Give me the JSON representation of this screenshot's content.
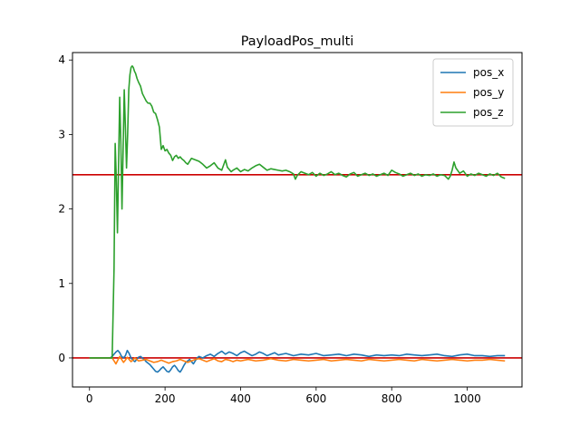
{
  "chart_data": {
    "type": "line",
    "title": "PayloadPos_multi",
    "xlabel": "",
    "ylabel": "",
    "xlim": [
      -45,
      1145
    ],
    "ylim": [
      -0.39,
      4.1
    ],
    "xticks": [
      0,
      200,
      400,
      600,
      800,
      1000
    ],
    "yticks": [
      0,
      1,
      2,
      3,
      4
    ],
    "grid": false,
    "legend_position": "top-right",
    "hlines": [
      {
        "y": 2.46,
        "color": "#cc0000"
      },
      {
        "y": 0.0,
        "color": "#cc0000"
      }
    ],
    "series": [
      {
        "name": "pos_x",
        "color": "#1f77b4",
        "x": [
          0,
          55,
          60,
          65,
          70,
          75,
          80,
          85,
          90,
          95,
          100,
          105,
          110,
          115,
          120,
          125,
          130,
          135,
          140,
          145,
          150,
          155,
          160,
          165,
          170,
          175,
          180,
          185,
          190,
          195,
          200,
          205,
          210,
          215,
          220,
          225,
          230,
          235,
          240,
          245,
          250,
          255,
          260,
          265,
          270,
          275,
          280,
          285,
          290,
          300,
          310,
          320,
          330,
          340,
          350,
          360,
          370,
          380,
          390,
          400,
          410,
          420,
          430,
          440,
          450,
          460,
          470,
          480,
          490,
          500,
          520,
          540,
          560,
          580,
          600,
          620,
          640,
          660,
          680,
          700,
          720,
          740,
          760,
          780,
          800,
          820,
          840,
          860,
          880,
          900,
          920,
          940,
          960,
          980,
          1000,
          1020,
          1040,
          1060,
          1080,
          1100
        ],
        "y": [
          0.0,
          0.0,
          0.02,
          0.05,
          0.08,
          0.1,
          0.07,
          0.02,
          0.0,
          0.03,
          0.1,
          0.06,
          0.0,
          -0.03,
          -0.05,
          -0.02,
          0.01,
          0.02,
          0.0,
          -0.02,
          -0.05,
          -0.07,
          -0.09,
          -0.12,
          -0.15,
          -0.18,
          -0.19,
          -0.17,
          -0.14,
          -0.12,
          -0.15,
          -0.18,
          -0.19,
          -0.16,
          -0.12,
          -0.1,
          -0.13,
          -0.17,
          -0.19,
          -0.15,
          -0.1,
          -0.06,
          -0.04,
          -0.02,
          -0.05,
          -0.08,
          -0.04,
          0.0,
          0.02,
          0.0,
          0.03,
          0.05,
          0.02,
          0.06,
          0.09,
          0.05,
          0.08,
          0.06,
          0.03,
          0.07,
          0.09,
          0.06,
          0.03,
          0.05,
          0.08,
          0.06,
          0.03,
          0.05,
          0.07,
          0.04,
          0.06,
          0.03,
          0.05,
          0.04,
          0.06,
          0.03,
          0.04,
          0.05,
          0.03,
          0.05,
          0.04,
          0.02,
          0.04,
          0.03,
          0.04,
          0.03,
          0.05,
          0.04,
          0.03,
          0.04,
          0.05,
          0.03,
          0.02,
          0.04,
          0.05,
          0.03,
          0.03,
          0.02,
          0.03,
          0.03
        ]
      },
      {
        "name": "pos_y",
        "color": "#ff7f0e",
        "x": [
          0,
          55,
          60,
          65,
          70,
          75,
          80,
          85,
          90,
          95,
          100,
          105,
          110,
          115,
          120,
          125,
          130,
          140,
          150,
          160,
          170,
          180,
          190,
          200,
          210,
          220,
          230,
          240,
          250,
          260,
          270,
          280,
          290,
          300,
          310,
          320,
          330,
          340,
          350,
          360,
          370,
          380,
          390,
          400,
          420,
          440,
          460,
          480,
          500,
          520,
          540,
          560,
          580,
          600,
          620,
          640,
          660,
          680,
          700,
          720,
          740,
          760,
          780,
          800,
          820,
          840,
          860,
          880,
          900,
          920,
          940,
          960,
          980,
          1000,
          1020,
          1040,
          1060,
          1080,
          1100
        ],
        "y": [
          0.0,
          0.0,
          0.0,
          -0.04,
          -0.08,
          -0.03,
          0.02,
          -0.02,
          -0.06,
          -0.03,
          0.01,
          -0.02,
          -0.05,
          -0.03,
          0.0,
          -0.02,
          -0.04,
          -0.03,
          -0.02,
          -0.04,
          -0.06,
          -0.05,
          -0.03,
          -0.05,
          -0.07,
          -0.05,
          -0.04,
          -0.02,
          -0.04,
          -0.06,
          -0.04,
          -0.02,
          -0.01,
          -0.03,
          -0.05,
          -0.03,
          -0.01,
          -0.04,
          -0.05,
          -0.02,
          -0.03,
          -0.05,
          -0.03,
          -0.04,
          -0.02,
          -0.04,
          -0.03,
          -0.01,
          -0.03,
          -0.04,
          -0.02,
          -0.03,
          -0.04,
          -0.03,
          -0.02,
          -0.04,
          -0.03,
          -0.02,
          -0.03,
          -0.04,
          -0.02,
          -0.03,
          -0.04,
          -0.03,
          -0.02,
          -0.03,
          -0.04,
          -0.02,
          -0.03,
          -0.04,
          -0.03,
          -0.02,
          -0.03,
          -0.04,
          -0.03,
          -0.03,
          -0.02,
          -0.03,
          -0.04
        ]
      },
      {
        "name": "pos_z",
        "color": "#2ca02c",
        "x": [
          0,
          55,
          60,
          65,
          68,
          71,
          74,
          77,
          80,
          83,
          86,
          89,
          92,
          95,
          98,
          101,
          104,
          107,
          110,
          113,
          116,
          119,
          122,
          126,
          130,
          135,
          140,
          145,
          150,
          155,
          160,
          165,
          170,
          175,
          180,
          185,
          190,
          195,
          200,
          205,
          210,
          215,
          220,
          225,
          230,
          235,
          240,
          245,
          250,
          255,
          260,
          270,
          280,
          290,
          300,
          310,
          320,
          330,
          340,
          350,
          360,
          365,
          370,
          375,
          380,
          390,
          400,
          410,
          420,
          430,
          440,
          450,
          460,
          470,
          480,
          490,
          500,
          510,
          520,
          530,
          540,
          545,
          550,
          560,
          570,
          580,
          590,
          600,
          610,
          620,
          630,
          640,
          650,
          660,
          670,
          680,
          690,
          700,
          710,
          720,
          730,
          740,
          750,
          760,
          770,
          780,
          790,
          800,
          810,
          820,
          830,
          840,
          850,
          860,
          870,
          880,
          890,
          900,
          910,
          920,
          930,
          940,
          950,
          955,
          960,
          965,
          970,
          980,
          990,
          1000,
          1010,
          1020,
          1030,
          1040,
          1050,
          1060,
          1070,
          1080,
          1090,
          1100
        ],
        "y": [
          0.0,
          0.0,
          0.0,
          1.2,
          2.88,
          2.4,
          1.68,
          2.6,
          3.5,
          2.9,
          2.0,
          2.8,
          3.6,
          3.1,
          2.55,
          3.0,
          3.6,
          3.8,
          3.9,
          3.92,
          3.9,
          3.85,
          3.82,
          3.75,
          3.7,
          3.65,
          3.55,
          3.5,
          3.45,
          3.42,
          3.42,
          3.38,
          3.3,
          3.28,
          3.2,
          3.1,
          2.8,
          2.85,
          2.78,
          2.8,
          2.75,
          2.72,
          2.65,
          2.7,
          2.72,
          2.68,
          2.7,
          2.67,
          2.65,
          2.62,
          2.6,
          2.68,
          2.66,
          2.64,
          2.6,
          2.55,
          2.58,
          2.62,
          2.55,
          2.52,
          2.66,
          2.56,
          2.53,
          2.5,
          2.52,
          2.55,
          2.5,
          2.53,
          2.51,
          2.55,
          2.58,
          2.6,
          2.56,
          2.52,
          2.54,
          2.53,
          2.52,
          2.51,
          2.52,
          2.5,
          2.47,
          2.4,
          2.45,
          2.5,
          2.48,
          2.46,
          2.49,
          2.44,
          2.48,
          2.45,
          2.47,
          2.5,
          2.46,
          2.48,
          2.45,
          2.43,
          2.47,
          2.49,
          2.44,
          2.46,
          2.48,
          2.45,
          2.47,
          2.44,
          2.46,
          2.48,
          2.45,
          2.52,
          2.49,
          2.47,
          2.44,
          2.46,
          2.48,
          2.45,
          2.47,
          2.44,
          2.46,
          2.45,
          2.47,
          2.44,
          2.46,
          2.45,
          2.4,
          2.44,
          2.52,
          2.63,
          2.55,
          2.48,
          2.51,
          2.44,
          2.47,
          2.45,
          2.48,
          2.46,
          2.44,
          2.47,
          2.45,
          2.48,
          2.43,
          2.41
        ]
      }
    ]
  }
}
